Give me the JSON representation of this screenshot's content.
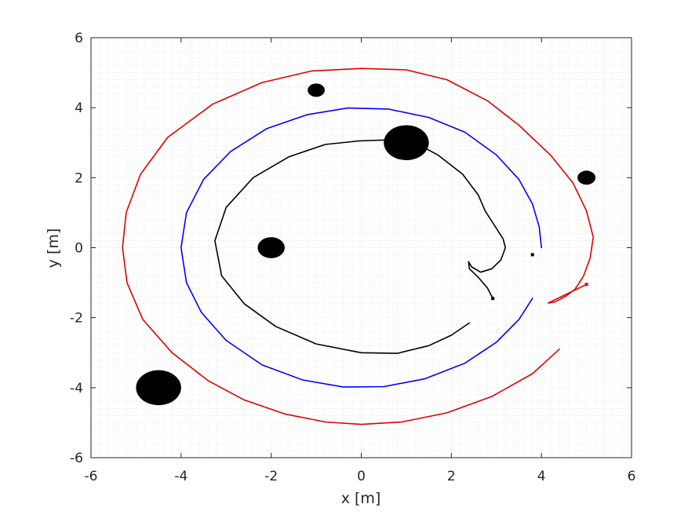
{
  "chart_data": {
    "type": "line",
    "xlabel": "x [m]",
    "ylabel": "y [m]",
    "xlim": [
      -6,
      6
    ],
    "ylim": [
      -6,
      6
    ],
    "xticks": [
      "-6",
      "-4",
      "-2",
      "0",
      "2",
      "4",
      "6"
    ],
    "yticks": [
      "-6",
      "-4",
      "-2",
      "0",
      "2",
      "4",
      "6"
    ],
    "grid": "minor dotted",
    "colors": {
      "black": "#000000",
      "blue": "#0000ff",
      "red": "#e00000",
      "axis": "#262626",
      "grid": "#d8d8d8"
    },
    "obstacles": [
      {
        "x": 1.0,
        "y": 3.0,
        "r": 0.5
      },
      {
        "x": -2.0,
        "y": 0.0,
        "r": 0.3
      },
      {
        "x": -1.0,
        "y": 4.5,
        "r": 0.19
      },
      {
        "x": 5.0,
        "y": 2.0,
        "r": 0.2
      },
      {
        "x": -4.5,
        "y": -4.0,
        "r": 0.5
      }
    ],
    "series": [
      {
        "color": "blue",
        "points": [
          [
            4.0,
            0.0
          ],
          [
            3.95,
            0.6
          ],
          [
            3.8,
            1.25
          ],
          [
            3.5,
            1.95
          ],
          [
            3.0,
            2.65
          ],
          [
            2.3,
            3.3
          ],
          [
            1.5,
            3.72
          ],
          [
            0.6,
            3.96
          ],
          [
            -0.3,
            3.99
          ],
          [
            -1.2,
            3.8
          ],
          [
            -2.1,
            3.4
          ],
          [
            -2.9,
            2.75
          ],
          [
            -3.5,
            1.95
          ],
          [
            -3.88,
            1.0
          ],
          [
            -4.0,
            0.0
          ],
          [
            -3.88,
            -1.0
          ],
          [
            -3.55,
            -1.85
          ],
          [
            -3.0,
            -2.65
          ],
          [
            -2.2,
            -3.35
          ],
          [
            -1.3,
            -3.78
          ],
          [
            -0.4,
            -3.98
          ],
          [
            0.5,
            -3.97
          ],
          [
            1.4,
            -3.75
          ],
          [
            2.3,
            -3.3
          ],
          [
            3.0,
            -2.7
          ],
          [
            3.5,
            -2.05
          ],
          [
            3.8,
            -1.45
          ]
        ]
      },
      {
        "color": "black",
        "points": [
          [
            -0.05,
            3.05
          ],
          [
            -0.8,
            2.95
          ],
          [
            -1.6,
            2.6
          ],
          [
            -2.4,
            2.0
          ],
          [
            -3.0,
            1.15
          ],
          [
            -3.25,
            0.2
          ],
          [
            -3.1,
            -0.8
          ],
          [
            -2.6,
            -1.6
          ],
          [
            -1.9,
            -2.25
          ],
          [
            -1.0,
            -2.75
          ],
          [
            0.0,
            -3.0
          ],
          [
            0.8,
            -3.02
          ],
          [
            1.5,
            -2.8
          ],
          [
            2.0,
            -2.5
          ],
          [
            2.4,
            -2.15
          ]
        ]
      },
      {
        "color": "black",
        "points": [
          [
            -0.05,
            3.05
          ],
          [
            0.6,
            3.08
          ],
          [
            1.2,
            3.0
          ],
          [
            1.7,
            2.65
          ],
          [
            2.25,
            2.1
          ],
          [
            2.6,
            1.5
          ],
          [
            2.75,
            1.05
          ],
          [
            2.95,
            0.65
          ],
          [
            3.15,
            0.25
          ],
          [
            3.2,
            0.0
          ],
          [
            3.1,
            -0.35
          ],
          [
            2.9,
            -0.6
          ],
          [
            2.65,
            -0.7
          ],
          [
            2.45,
            -0.55
          ],
          [
            2.38,
            -0.4
          ],
          [
            2.4,
            -0.6
          ],
          [
            2.6,
            -0.85
          ],
          [
            2.8,
            -1.15
          ],
          [
            2.92,
            -1.45
          ]
        ]
      },
      {
        "color": "red",
        "points": [
          [
            5.0,
            -1.05
          ],
          [
            4.6,
            -1.3
          ],
          [
            4.15,
            -1.58
          ],
          [
            4.3,
            -1.55
          ],
          [
            4.55,
            -1.38
          ],
          [
            4.75,
            -1.18
          ],
          [
            4.93,
            -0.82
          ],
          [
            5.08,
            -0.3
          ],
          [
            5.15,
            0.3
          ],
          [
            5.0,
            1.05
          ],
          [
            4.7,
            1.85
          ],
          [
            4.2,
            2.65
          ],
          [
            3.5,
            3.5
          ],
          [
            2.8,
            4.2
          ],
          [
            1.9,
            4.8
          ],
          [
            1.0,
            5.08
          ],
          [
            0.0,
            5.12
          ],
          [
            -1.1,
            5.05
          ],
          [
            -2.2,
            4.72
          ],
          [
            -3.3,
            4.1
          ],
          [
            -4.3,
            3.15
          ],
          [
            -4.9,
            2.1
          ],
          [
            -5.22,
            1.0
          ],
          [
            -5.3,
            0.0
          ],
          [
            -5.2,
            -1.0
          ],
          [
            -4.85,
            -2.05
          ],
          [
            -4.2,
            -3.0
          ],
          [
            -3.4,
            -3.8
          ],
          [
            -2.6,
            -4.35
          ],
          [
            -1.7,
            -4.75
          ],
          [
            -0.8,
            -4.98
          ],
          [
            0.0,
            -5.05
          ],
          [
            0.9,
            -4.98
          ],
          [
            1.9,
            -4.72
          ],
          [
            2.9,
            -4.25
          ],
          [
            3.8,
            -3.6
          ],
          [
            4.4,
            -2.9
          ]
        ]
      }
    ],
    "markers": [
      {
        "color": "black",
        "x": 3.8,
        "y": -0.2
      },
      {
        "color": "black",
        "x": 2.92,
        "y": -1.45
      },
      {
        "color": "red",
        "x": 5.0,
        "y": -1.05
      }
    ]
  }
}
